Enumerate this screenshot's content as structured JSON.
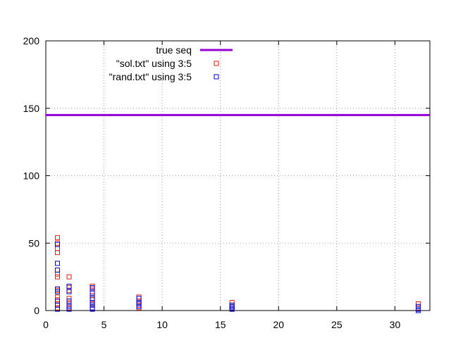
{
  "chart_data": {
    "type": "scatter",
    "title": "",
    "xlabel": "",
    "ylabel": "",
    "xlim": [
      0,
      33
    ],
    "ylim": [
      0,
      200
    ],
    "x_ticks": [
      0,
      5,
      10,
      15,
      20,
      25,
      30
    ],
    "y_ticks": [
      0,
      50,
      100,
      150,
      200
    ],
    "grid": true,
    "legend_position": "top-center",
    "series": [
      {
        "name": "true seq",
        "kind": "hline",
        "y": 145,
        "color": "#9400d3"
      },
      {
        "name": "\"sol.txt\" using 3:5",
        "kind": "points",
        "color": "#e51e10",
        "points": [
          [
            1,
            54
          ],
          [
            1,
            50
          ],
          [
            1,
            46
          ],
          [
            1,
            43
          ],
          [
            1,
            27
          ],
          [
            1,
            25
          ],
          [
            1,
            15
          ],
          [
            1,
            10
          ],
          [
            1,
            8
          ],
          [
            1,
            5
          ],
          [
            1,
            2
          ],
          [
            2,
            25
          ],
          [
            2,
            17
          ],
          [
            2,
            15
          ],
          [
            2,
            9
          ],
          [
            2,
            5
          ],
          [
            2,
            2
          ],
          [
            4,
            18
          ],
          [
            4,
            16
          ],
          [
            4,
            11
          ],
          [
            4,
            8
          ],
          [
            4,
            5
          ],
          [
            4,
            2
          ],
          [
            8,
            10
          ],
          [
            8,
            7
          ],
          [
            8,
            4
          ],
          [
            8,
            2
          ],
          [
            16,
            6
          ],
          [
            16,
            3
          ],
          [
            16,
            1
          ],
          [
            32,
            5
          ],
          [
            32,
            2
          ]
        ]
      },
      {
        "name": "\"rand.txt\" using 3:5",
        "kind": "points",
        "color": "#0000cc",
        "points": [
          [
            1,
            49
          ],
          [
            1,
            35
          ],
          [
            1,
            30
          ],
          [
            1,
            16
          ],
          [
            1,
            14
          ],
          [
            1,
            7
          ],
          [
            1,
            4
          ],
          [
            1,
            1
          ],
          [
            2,
            18
          ],
          [
            2,
            14
          ],
          [
            2,
            7
          ],
          [
            2,
            3
          ],
          [
            2,
            1
          ],
          [
            4,
            17
          ],
          [
            4,
            13
          ],
          [
            4,
            9
          ],
          [
            4,
            6
          ],
          [
            4,
            4
          ],
          [
            4,
            2
          ],
          [
            4,
            1
          ],
          [
            8,
            9
          ],
          [
            8,
            6
          ],
          [
            8,
            5
          ],
          [
            8,
            3
          ],
          [
            16,
            4
          ],
          [
            16,
            3
          ],
          [
            16,
            2
          ],
          [
            16,
            1
          ],
          [
            32,
            3
          ],
          [
            32,
            1
          ],
          [
            32,
            0
          ]
        ]
      }
    ]
  }
}
